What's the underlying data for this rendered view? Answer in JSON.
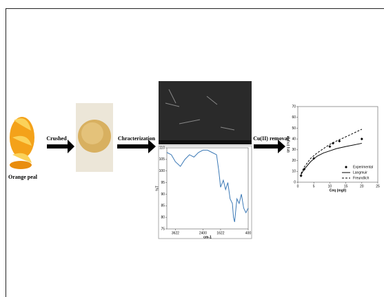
{
  "nodes": [
    {
      "label": "Orange peal"
    }
  ],
  "arrows": [
    {
      "label": "Crushed"
    },
    {
      "label": "Chracterization"
    },
    {
      "label": "Cu(II) removal"
    }
  ],
  "ftir_chart": {
    "type": "line",
    "xlabel": "cm-1",
    "ylabel": "%T",
    "xlim": [
      4000,
      400
    ],
    "xticks": [
      3622,
      2400,
      1622,
      400
    ],
    "ylim": [
      75,
      110
    ],
    "yticks": [
      75,
      80,
      85,
      90,
      95,
      100,
      105,
      110
    ],
    "series": [
      {
        "color": "#3a78b5",
        "x": [
          4000,
          3800,
          3622,
          3400,
          3200,
          3000,
          2800,
          2600,
          2400,
          2200,
          2000,
          1800,
          1700,
          1622,
          1500,
          1400,
          1300,
          1200,
          1100,
          1050,
          1000,
          900,
          800,
          700,
          600,
          500,
          400
        ],
        "values": [
          108,
          107,
          104,
          102,
          105,
          107,
          106,
          108,
          109,
          109,
          108,
          107,
          100,
          93,
          96,
          92,
          95,
          88,
          86,
          80,
          78,
          88,
          86,
          90,
          84,
          82,
          84
        ]
      }
    ]
  },
  "isotherm_chart": {
    "type": "line",
    "xlabel": "Ceq (mg/l)",
    "ylabel": "qeq (mg/g)",
    "xlim": [
      0,
      25
    ],
    "xticks": [
      0,
      5,
      10,
      15,
      20,
      25
    ],
    "ylim": [
      0,
      70
    ],
    "yticks": [
      0,
      10,
      20,
      30,
      40,
      50,
      60,
      70
    ],
    "legend": "lower right",
    "series": [
      {
        "name": "Experimental",
        "marker": "diamond",
        "color": "#000000",
        "x": [
          1,
          2,
          5,
          10,
          11,
          13,
          20
        ],
        "values": [
          6,
          12,
          22,
          33,
          36,
          38,
          40
        ]
      },
      {
        "name": "Langmuir",
        "dash": "solid",
        "color": "#000000",
        "x": [
          1,
          2,
          4,
          6,
          8,
          10,
          12,
          15,
          20
        ],
        "values": [
          7,
          12,
          19,
          24,
          27,
          29,
          31,
          33,
          36
        ]
      },
      {
        "name": "Freundlich",
        "dash": "dashed",
        "color": "#000000",
        "x": [
          1,
          2,
          4,
          6,
          8,
          10,
          12,
          15,
          20
        ],
        "values": [
          8,
          14,
          22,
          27,
          31,
          35,
          38,
          42,
          49
        ]
      }
    ]
  }
}
